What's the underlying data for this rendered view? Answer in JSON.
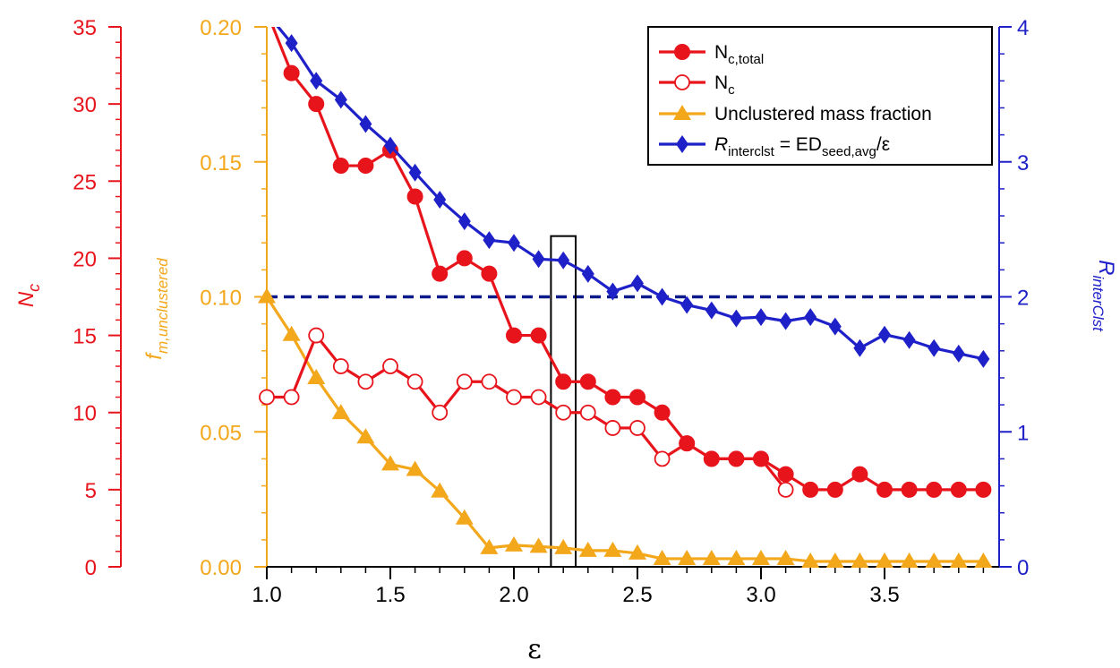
{
  "chart_data": {
    "type": "line",
    "xlabel": "ε",
    "axes": {
      "x": {
        "min": 1.0,
        "max": 3.95,
        "ticks": [
          "1.0",
          "1.5",
          "2.0",
          "2.5",
          "3.0",
          "3.5"
        ],
        "tick_values": [
          1.0,
          1.5,
          2.0,
          2.5,
          3.0,
          3.5
        ],
        "minor_step": 0.1
      },
      "y_nc": {
        "label_main": "N",
        "label_sub": "c",
        "min": 0,
        "max": 35,
        "ticks": [
          "0",
          "5",
          "10",
          "15",
          "20",
          "25",
          "30",
          "35"
        ],
        "tick_values": [
          0,
          5,
          10,
          15,
          20,
          25,
          30,
          35
        ],
        "color": "#e8141c"
      },
      "y_frac": {
        "label_main": "f",
        "label_sub": "m,unclustered",
        "min": 0,
        "max": 0.2,
        "ticks": [
          "0.00",
          "0.05",
          "0.10",
          "0.15",
          "0.20"
        ],
        "tick_values": [
          0,
          0.05,
          0.1,
          0.15,
          0.2
        ],
        "color": "#f3a71b"
      },
      "y_r": {
        "label_main": "R",
        "label_sub": "interClst",
        "min": 0,
        "max": 4,
        "ticks": [
          "0",
          "1",
          "2",
          "3",
          "4"
        ],
        "tick_values": [
          0,
          1,
          2,
          3,
          4
        ],
        "color": "#1f21c8"
      }
    },
    "series": [
      {
        "name": "N",
        "name_sub": "c,total",
        "axis": "y_nc",
        "marker": "filled-circle",
        "color": "#e8141c",
        "x": [
          1.0,
          1.1,
          1.2,
          1.3,
          1.4,
          1.5,
          1.6,
          1.7,
          1.8,
          1.9,
          2.0,
          2.1,
          2.2,
          2.3,
          2.4,
          2.5,
          2.6,
          2.7,
          2.8,
          2.9,
          3.0,
          3.1,
          3.2,
          3.3,
          3.4,
          3.5,
          3.6,
          3.7,
          3.8,
          3.9
        ],
        "y": [
          36,
          32,
          30,
          26,
          26,
          27,
          24,
          19,
          20,
          19,
          15,
          15,
          12,
          12,
          11,
          11,
          10,
          8,
          7,
          7,
          7,
          6,
          5,
          5,
          6,
          5,
          5,
          5,
          5,
          5
        ]
      },
      {
        "name": "N",
        "name_sub": "c",
        "axis": "y_nc",
        "marker": "open-circle",
        "color": "#e8141c",
        "x": [
          1.0,
          1.1,
          1.2,
          1.3,
          1.4,
          1.5,
          1.6,
          1.7,
          1.8,
          1.9,
          2.0,
          2.1,
          2.2,
          2.3,
          2.4,
          2.5,
          2.6,
          2.7,
          2.8,
          2.9,
          3.0,
          3.1
        ],
        "y": [
          11,
          11,
          15,
          13,
          12,
          13,
          12,
          10,
          12,
          12,
          11,
          11,
          10,
          10,
          9,
          9,
          7,
          8,
          7,
          7,
          7,
          5
        ]
      },
      {
        "name": "Unclustered mass fraction",
        "axis": "y_frac",
        "marker": "filled-triangle",
        "color": "#f3a71b",
        "x": [
          1.0,
          1.1,
          1.2,
          1.3,
          1.4,
          1.5,
          1.6,
          1.7,
          1.8,
          1.9,
          2.0,
          2.1,
          2.2,
          2.3,
          2.4,
          2.5,
          2.6,
          2.7,
          2.8,
          2.9,
          3.0,
          3.1,
          3.2,
          3.3,
          3.4,
          3.5,
          3.6,
          3.7,
          3.8,
          3.9
        ],
        "y": [
          0.1,
          0.086,
          0.07,
          0.057,
          0.048,
          0.038,
          0.036,
          0.028,
          0.018,
          0.007,
          0.008,
          0.0075,
          0.007,
          0.006,
          0.006,
          0.005,
          0.003,
          0.003,
          0.003,
          0.003,
          0.003,
          0.003,
          0.002,
          0.002,
          0.002,
          0.002,
          0.002,
          0.002,
          0.002,
          0.002
        ]
      },
      {
        "name": "R",
        "name_sub": "interclst",
        "name_rest": " = ED",
        "name_sub2": "seed,avg",
        "name_rest2": "/ε",
        "axis": "y_r",
        "marker": "filled-diamond",
        "color": "#1f21c8",
        "x": [
          1.0,
          1.1,
          1.2,
          1.3,
          1.4,
          1.5,
          1.6,
          1.7,
          1.8,
          1.9,
          2.0,
          2.1,
          2.2,
          2.3,
          2.4,
          2.5,
          2.6,
          2.7,
          2.8,
          2.9,
          3.0,
          3.1,
          3.2,
          3.3,
          3.4,
          3.5,
          3.6,
          3.7,
          3.8,
          3.9
        ],
        "y": [
          4.1,
          3.88,
          3.6,
          3.46,
          3.28,
          3.12,
          2.92,
          2.72,
          2.56,
          2.42,
          2.4,
          2.28,
          2.27,
          2.17,
          2.04,
          2.1,
          2.0,
          1.94,
          1.9,
          1.84,
          1.85,
          1.82,
          1.85,
          1.78,
          1.62,
          1.72,
          1.68,
          1.62,
          1.58,
          1.54
        ]
      }
    ],
    "reference_line": {
      "axis": "y_r",
      "y": 2,
      "style": "dashed",
      "color": "#0b1a8a"
    },
    "highlight_box": {
      "x0": 2.15,
      "x1": 2.25,
      "y_r0": 0,
      "y_r1": 2.45
    },
    "legend": {
      "placement": "top-right"
    }
  }
}
